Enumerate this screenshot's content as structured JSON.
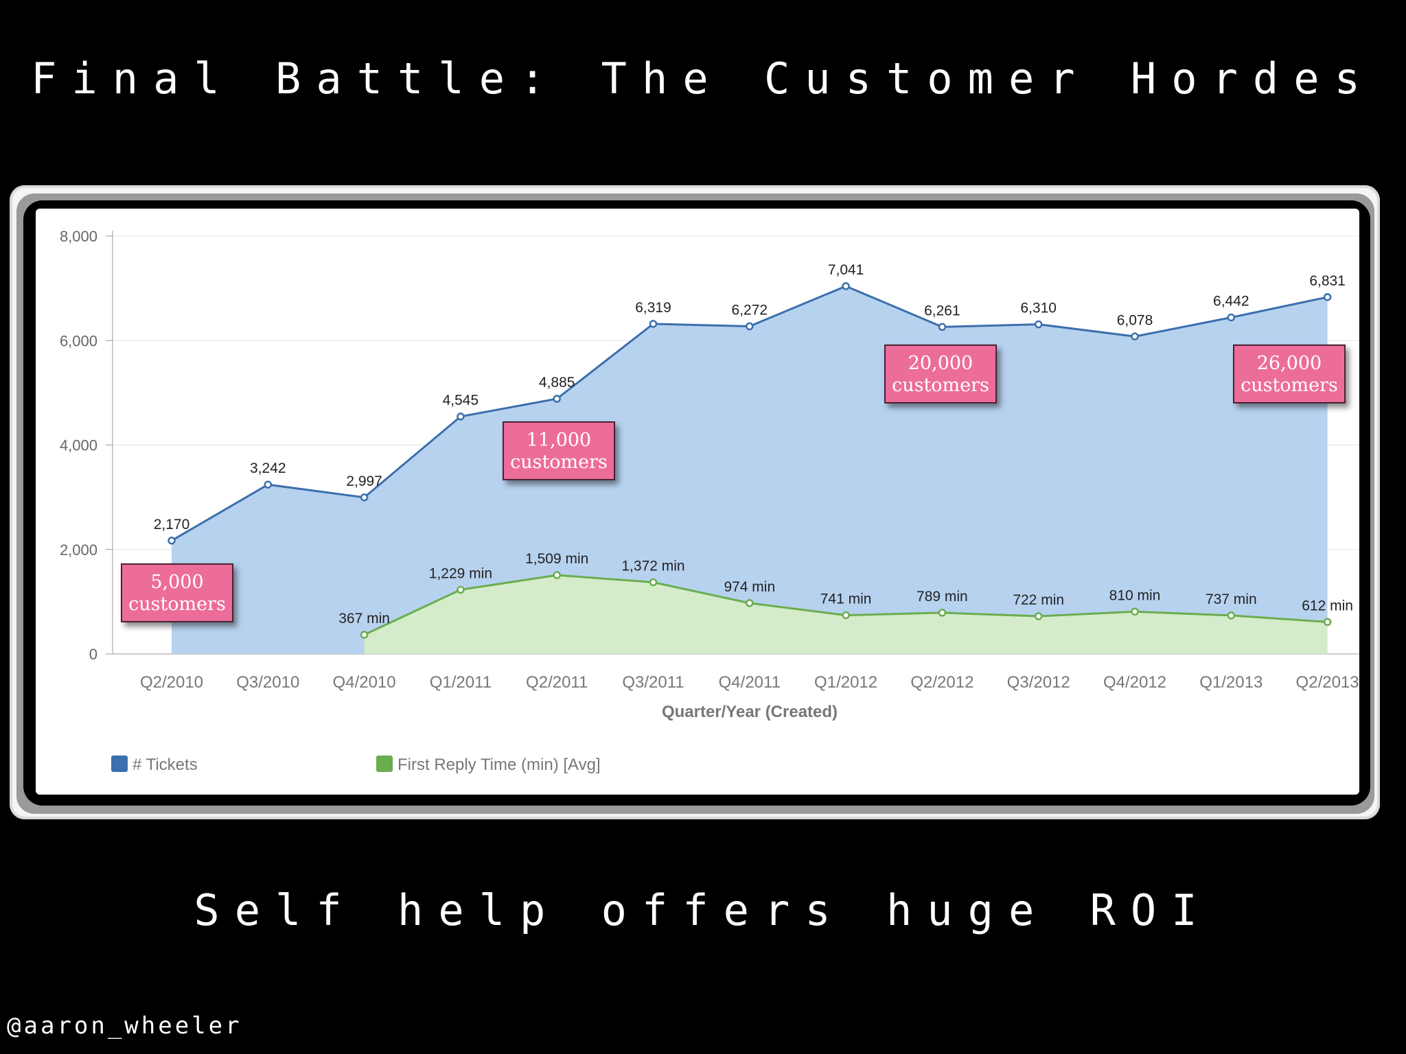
{
  "slide": {
    "title": "Final Battle: The Customer Hordes",
    "subtitle": "Self help offers huge ROI",
    "handle": "@aaron_wheeler"
  },
  "callouts": [
    {
      "number": "5,000",
      "text": "customers"
    },
    {
      "number": "11,000",
      "text": "customers"
    },
    {
      "number": "20,000",
      "text": "customers"
    },
    {
      "number": "26,000",
      "text": "customers"
    }
  ],
  "colors": {
    "tickets_line": "#3b6fad",
    "tickets_fill": "#b7d2ef",
    "reply_line": "#6aad4f",
    "reply_fill": "#d4ecc9",
    "callout": "#ec6d9a"
  },
  "chart_data": {
    "type": "area",
    "xlabel": "Quarter/Year (Created)",
    "ylabel": "",
    "ylim": [
      0,
      8000
    ],
    "yticks": [
      "0",
      "2,000",
      "4,000",
      "6,000",
      "8,000"
    ],
    "grid": true,
    "legend_position": "bottom-left",
    "categories": [
      "Q2/2010",
      "Q3/2010",
      "Q4/2010",
      "Q1/2011",
      "Q2/2011",
      "Q3/2011",
      "Q4/2011",
      "Q1/2012",
      "Q2/2012",
      "Q3/2012",
      "Q4/2012",
      "Q1/2013",
      "Q2/2013"
    ],
    "series": [
      {
        "name": "# Tickets",
        "values": [
          2170,
          3242,
          2997,
          4545,
          4885,
          6319,
          6272,
          7041,
          6261,
          6310,
          6078,
          6442,
          6831
        ],
        "labels": [
          "2,170",
          "3,242",
          "2,997",
          "4,545",
          "4,885",
          "6,319",
          "6,272",
          "7,041",
          "6,261",
          "6,310",
          "6,078",
          "6,442",
          "6,831"
        ]
      },
      {
        "name": "First Reply Time (min) [Avg]",
        "values": [
          null,
          null,
          367,
          1229,
          1509,
          1372,
          974,
          741,
          789,
          722,
          810,
          737,
          612
        ],
        "labels": [
          null,
          null,
          "367 min",
          "1,229 min",
          "1,509 min",
          "1,372 min",
          "974 min",
          "741 min",
          "789 min",
          "722 min",
          "810 min",
          "737 min",
          "612 min"
        ]
      }
    ]
  }
}
